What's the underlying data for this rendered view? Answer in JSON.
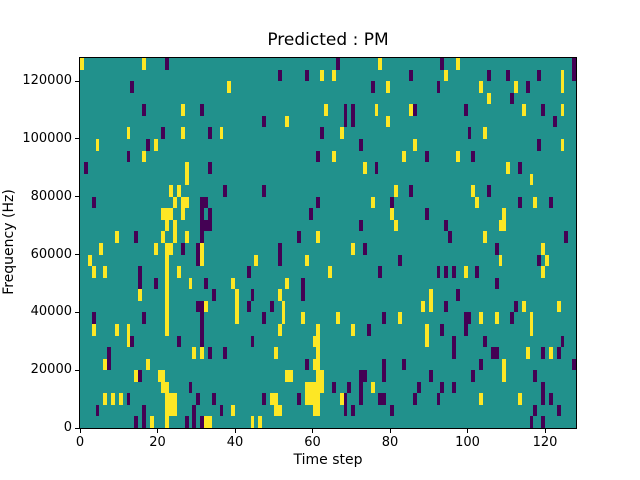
{
  "chart_data": {
    "type": "heatmap",
    "title": "Predicted : PM",
    "predicted_class": "PM",
    "xlabel": "Time step",
    "ylabel": "Frequency (Hz)",
    "x_range": [
      0,
      128
    ],
    "y_range": [
      0,
      128000
    ],
    "x_ticks": [
      0,
      20,
      40,
      60,
      80,
      100,
      120
    ],
    "y_ticks": [
      0,
      20000,
      40000,
      60000,
      80000,
      100000,
      120000
    ],
    "grid": {
      "cols": 128,
      "rows": 32,
      "hz_per_row": 4000,
      "row_origin": "top"
    },
    "legend_position": "none",
    "grid_lines": false,
    "colors": {
      "colormap": "viridis",
      "background": "#21918c",
      "high": "#fde725",
      "low": "#440154",
      "axis": "#000000",
      "figure_background": "#ffffff"
    },
    "cells": {
      "high": [
        [
          0,
          0
        ],
        [
          16,
          0
        ],
        [
          77,
          0
        ],
        [
          97,
          0
        ],
        [
          62,
          1
        ],
        [
          65,
          1
        ],
        [
          94,
          1
        ],
        [
          124,
          1
        ],
        [
          38,
          2
        ],
        [
          79,
          2
        ],
        [
          103,
          2
        ],
        [
          112,
          2
        ],
        [
          124,
          2
        ],
        [
          105,
          3
        ],
        [
          26,
          4
        ],
        [
          63,
          4
        ],
        [
          76,
          4
        ],
        [
          85,
          4
        ],
        [
          114,
          4
        ],
        [
          124,
          4
        ],
        [
          53,
          5
        ],
        [
          79,
          5
        ],
        [
          12,
          6
        ],
        [
          26,
          6
        ],
        [
          36,
          6
        ],
        [
          67,
          6
        ],
        [
          104,
          6
        ],
        [
          4,
          7
        ],
        [
          19,
          7
        ],
        [
          86,
          7
        ],
        [
          124,
          7
        ],
        [
          16,
          8
        ],
        [
          65,
          8
        ],
        [
          83,
          8
        ],
        [
          97,
          8
        ],
        [
          27,
          9
        ],
        [
          73,
          9
        ],
        [
          110,
          9
        ],
        [
          27,
          10
        ],
        [
          116,
          10
        ],
        [
          23,
          11
        ],
        [
          25,
          11
        ],
        [
          81,
          11
        ],
        [
          101,
          11
        ],
        [
          24,
          12
        ],
        [
          26,
          12
        ],
        [
          27,
          12
        ],
        [
          75,
          12
        ],
        [
          102,
          12
        ],
        [
          117,
          12
        ],
        [
          21,
          13
        ],
        [
          22,
          13
        ],
        [
          23,
          13
        ],
        [
          26,
          13
        ],
        [
          80,
          13
        ],
        [
          109,
          13
        ],
        [
          22,
          14
        ],
        [
          24,
          14
        ],
        [
          81,
          14
        ],
        [
          108,
          14
        ],
        [
          109,
          14
        ],
        [
          9,
          15
        ],
        [
          21,
          15
        ],
        [
          24,
          15
        ],
        [
          27,
          15
        ],
        [
          61,
          15
        ],
        [
          104,
          15
        ],
        [
          5,
          16
        ],
        [
          19,
          16
        ],
        [
          22,
          16
        ],
        [
          23,
          16
        ],
        [
          31,
          16
        ],
        [
          70,
          16
        ],
        [
          119,
          16
        ],
        [
          2,
          17
        ],
        [
          22,
          17
        ],
        [
          31,
          17
        ],
        [
          45,
          17
        ],
        [
          58,
          17
        ],
        [
          108,
          17
        ],
        [
          120,
          17
        ],
        [
          3,
          18
        ],
        [
          6,
          18
        ],
        [
          22,
          18
        ],
        [
          25,
          18
        ],
        [
          64,
          18
        ],
        [
          99,
          18
        ],
        [
          119,
          18
        ],
        [
          22,
          19
        ],
        [
          28,
          19
        ],
        [
          39,
          19
        ],
        [
          53,
          19
        ],
        [
          15,
          20
        ],
        [
          22,
          20
        ],
        [
          40,
          20
        ],
        [
          51,
          20
        ],
        [
          90,
          20
        ],
        [
          22,
          21
        ],
        [
          32,
          21
        ],
        [
          40,
          21
        ],
        [
          52,
          21
        ],
        [
          88,
          21
        ],
        [
          90,
          21
        ],
        [
          114,
          21
        ],
        [
          123,
          21
        ],
        [
          22,
          22
        ],
        [
          40,
          22
        ],
        [
          52,
          22
        ],
        [
          57,
          22
        ],
        [
          66,
          22
        ],
        [
          82,
          22
        ],
        [
          103,
          22
        ],
        [
          107,
          22
        ],
        [
          116,
          22
        ],
        [
          3,
          23
        ],
        [
          9,
          23
        ],
        [
          12,
          23
        ],
        [
          22,
          23
        ],
        [
          51,
          23
        ],
        [
          61,
          23
        ],
        [
          70,
          23
        ],
        [
          89,
          23
        ],
        [
          116,
          23
        ],
        [
          12,
          24
        ],
        [
          60,
          24
        ],
        [
          61,
          24
        ],
        [
          89,
          24
        ],
        [
          29,
          25
        ],
        [
          31,
          25
        ],
        [
          50,
          25
        ],
        [
          61,
          25
        ],
        [
          115,
          25
        ],
        [
          121,
          25
        ],
        [
          6,
          26
        ],
        [
          17,
          26
        ],
        [
          60,
          26
        ],
        [
          61,
          26
        ],
        [
          109,
          26
        ],
        [
          14,
          27
        ],
        [
          20,
          27
        ],
        [
          21,
          27
        ],
        [
          53,
          27
        ],
        [
          54,
          27
        ],
        [
          61,
          27
        ],
        [
          62,
          27
        ],
        [
          109,
          27
        ],
        [
          21,
          28
        ],
        [
          22,
          28
        ],
        [
          58,
          28
        ],
        [
          59,
          28
        ],
        [
          60,
          28
        ],
        [
          61,
          28
        ],
        [
          62,
          28
        ],
        [
          75,
          28
        ],
        [
          6,
          29
        ],
        [
          8,
          29
        ],
        [
          10,
          29
        ],
        [
          22,
          29
        ],
        [
          23,
          29
        ],
        [
          24,
          29
        ],
        [
          49,
          29
        ],
        [
          50,
          29
        ],
        [
          58,
          29
        ],
        [
          59,
          29
        ],
        [
          60,
          29
        ],
        [
          61,
          29
        ],
        [
          67,
          29
        ],
        [
          103,
          29
        ],
        [
          113,
          29
        ],
        [
          22,
          30
        ],
        [
          23,
          30
        ],
        [
          24,
          30
        ],
        [
          39,
          30
        ],
        [
          50,
          30
        ],
        [
          51,
          30
        ],
        [
          60,
          30
        ],
        [
          61,
          30
        ],
        [
          18,
          31
        ],
        [
          22,
          31
        ],
        [
          32,
          31
        ],
        [
          33,
          31
        ],
        [
          44,
          31
        ],
        [
          46,
          31
        ]
      ],
      "low": [
        [
          22,
          0
        ],
        [
          66,
          0
        ],
        [
          93,
          0
        ],
        [
          127,
          0
        ],
        [
          51,
          1
        ],
        [
          58,
          1
        ],
        [
          85,
          1
        ],
        [
          105,
          1
        ],
        [
          110,
          1
        ],
        [
          118,
          1
        ],
        [
          127,
          1
        ],
        [
          13,
          2
        ],
        [
          75,
          2
        ],
        [
          92,
          2
        ],
        [
          115,
          2
        ],
        [
          111,
          3
        ],
        [
          16,
          4
        ],
        [
          31,
          4
        ],
        [
          68,
          4
        ],
        [
          70,
          4
        ],
        [
          86,
          4
        ],
        [
          99,
          4
        ],
        [
          119,
          4
        ],
        [
          47,
          5
        ],
        [
          68,
          5
        ],
        [
          70,
          5
        ],
        [
          122,
          5
        ],
        [
          21,
          6
        ],
        [
          33,
          6
        ],
        [
          62,
          6
        ],
        [
          100,
          6
        ],
        [
          17,
          7
        ],
        [
          72,
          7
        ],
        [
          118,
          7
        ],
        [
          12,
          8
        ],
        [
          61,
          8
        ],
        [
          89,
          8
        ],
        [
          101,
          8
        ],
        [
          1,
          9
        ],
        [
          33,
          9
        ],
        [
          76,
          9
        ],
        [
          113,
          9
        ],
        [
          37,
          11
        ],
        [
          47,
          11
        ],
        [
          85,
          11
        ],
        [
          105,
          11
        ],
        [
          3,
          12
        ],
        [
          31,
          12
        ],
        [
          32,
          12
        ],
        [
          61,
          12
        ],
        [
          80,
          12
        ],
        [
          113,
          12
        ],
        [
          121,
          12
        ],
        [
          31,
          13
        ],
        [
          33,
          13
        ],
        [
          59,
          13
        ],
        [
          89,
          13
        ],
        [
          31,
          14
        ],
        [
          32,
          14
        ],
        [
          33,
          14
        ],
        [
          72,
          14
        ],
        [
          94,
          14
        ],
        [
          14,
          15
        ],
        [
          31,
          15
        ],
        [
          56,
          15
        ],
        [
          95,
          15
        ],
        [
          125,
          15
        ],
        [
          26,
          16
        ],
        [
          30,
          16
        ],
        [
          51,
          16
        ],
        [
          73,
          16
        ],
        [
          107,
          16
        ],
        [
          30,
          17
        ],
        [
          51,
          17
        ],
        [
          82,
          17
        ],
        [
          118,
          17
        ],
        [
          15,
          18
        ],
        [
          43,
          18
        ],
        [
          77,
          18
        ],
        [
          92,
          18
        ],
        [
          94,
          18
        ],
        [
          96,
          18
        ],
        [
          102,
          18
        ],
        [
          15,
          19
        ],
        [
          19,
          19
        ],
        [
          32,
          19
        ],
        [
          57,
          19
        ],
        [
          107,
          19
        ],
        [
          34,
          20
        ],
        [
          44,
          20
        ],
        [
          57,
          20
        ],
        [
          97,
          20
        ],
        [
          30,
          21
        ],
        [
          31,
          21
        ],
        [
          43,
          21
        ],
        [
          49,
          21
        ],
        [
          94,
          21
        ],
        [
          112,
          21
        ],
        [
          3,
          22
        ],
        [
          16,
          22
        ],
        [
          31,
          22
        ],
        [
          47,
          22
        ],
        [
          78,
          22
        ],
        [
          99,
          22
        ],
        [
          100,
          22
        ],
        [
          111,
          22
        ],
        [
          31,
          23
        ],
        [
          74,
          23
        ],
        [
          93,
          23
        ],
        [
          99,
          23
        ],
        [
          13,
          24
        ],
        [
          25,
          24
        ],
        [
          31,
          24
        ],
        [
          44,
          24
        ],
        [
          96,
          24
        ],
        [
          104,
          24
        ],
        [
          124,
          24
        ],
        [
          7,
          25
        ],
        [
          33,
          25
        ],
        [
          37,
          25
        ],
        [
          96,
          25
        ],
        [
          106,
          25
        ],
        [
          107,
          25
        ],
        [
          119,
          25
        ],
        [
          123,
          25
        ],
        [
          7,
          26
        ],
        [
          58,
          26
        ],
        [
          78,
          26
        ],
        [
          83,
          26
        ],
        [
          103,
          26
        ],
        [
          127,
          26
        ],
        [
          15,
          27
        ],
        [
          72,
          27
        ],
        [
          73,
          27
        ],
        [
          78,
          27
        ],
        [
          90,
          27
        ],
        [
          101,
          27
        ],
        [
          117,
          27
        ],
        [
          28,
          28
        ],
        [
          65,
          28
        ],
        [
          69,
          28
        ],
        [
          72,
          28
        ],
        [
          87,
          28
        ],
        [
          93,
          28
        ],
        [
          96,
          28
        ],
        [
          119,
          28
        ],
        [
          12,
          29
        ],
        [
          30,
          29
        ],
        [
          34,
          29
        ],
        [
          47,
          29
        ],
        [
          56,
          29
        ],
        [
          68,
          29
        ],
        [
          72,
          29
        ],
        [
          77,
          29
        ],
        [
          78,
          29
        ],
        [
          86,
          29
        ],
        [
          92,
          29
        ],
        [
          119,
          29
        ],
        [
          121,
          29
        ],
        [
          4,
          30
        ],
        [
          16,
          30
        ],
        [
          29,
          30
        ],
        [
          36,
          30
        ],
        [
          68,
          30
        ],
        [
          70,
          30
        ],
        [
          80,
          30
        ],
        [
          117,
          30
        ],
        [
          123,
          30
        ],
        [
          14,
          31
        ],
        [
          16,
          31
        ],
        [
          27,
          31
        ],
        [
          29,
          31
        ],
        [
          31,
          31
        ],
        [
          116,
          31
        ],
        [
          119,
          31
        ]
      ]
    }
  }
}
